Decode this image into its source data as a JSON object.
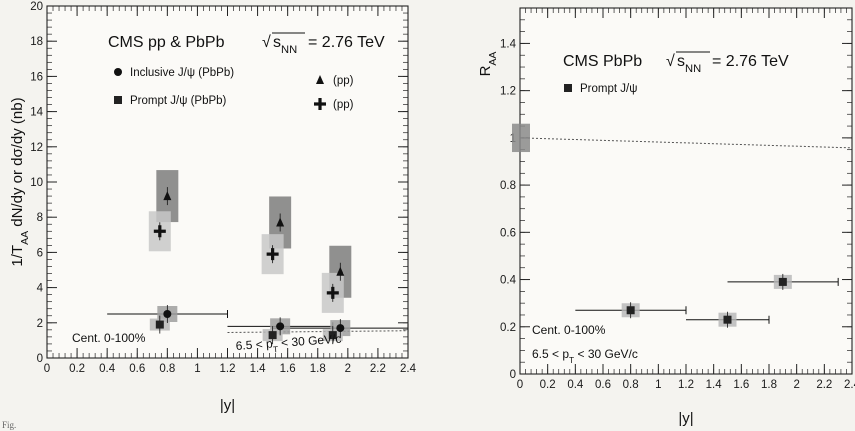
{
  "caption": "Fig.",
  "chart_data": [
    {
      "type": "scatter",
      "title": "CMS pp & PbPb",
      "energy_text": "= 2.76 TeV",
      "ylabel": "1/T_AA dN/dy or dσ/dy (nb)",
      "xlabel": "|y|",
      "xlim": [
        0,
        2.4
      ],
      "ylim": [
        0,
        20
      ],
      "x_ticks": [
        "0",
        "0.2",
        "0.4",
        "0.6",
        "0.8",
        "1",
        "1.2",
        "1.4",
        "1.6",
        "1.8",
        "2",
        "2.2",
        "2.4"
      ],
      "y_ticks": [
        "0",
        "2",
        "4",
        "6",
        "8",
        "10",
        "12",
        "14",
        "16",
        "18",
        "20"
      ],
      "centrality": "Cent. 0-100%",
      "pt_range": "6.5 < p_T < 30 GeV/c",
      "series": [
        {
          "name": "Inclusive J/ψ (PbPb)",
          "marker": "circle",
          "x": [
            0.8,
            1.55,
            1.95
          ],
          "y": [
            2.5,
            1.8,
            1.7
          ],
          "x_err": [
            0.4,
            0.35,
            0.45
          ]
        },
        {
          "name": "(pp)",
          "marker": "triangle",
          "x": [
            0.8,
            1.55,
            1.95
          ],
          "y": [
            9.2,
            7.7,
            4.9
          ]
        },
        {
          "name": "Prompt J/ψ (PbPb)",
          "marker": "square",
          "x": [
            0.75,
            1.5,
            1.9
          ],
          "y": [
            1.9,
            1.3,
            1.3
          ]
        },
        {
          "name": "(pp)",
          "marker": "cross",
          "x": [
            0.75,
            1.5,
            1.9
          ],
          "y": [
            7.2,
            5.9,
            3.7
          ]
        }
      ]
    },
    {
      "type": "scatter",
      "title": "CMS PbPb",
      "energy_text": "= 2.76 TeV",
      "ylabel": "R_AA",
      "xlabel": "|y|",
      "xlim": [
        0,
        2.4
      ],
      "ylim": [
        0,
        1.55
      ],
      "x_ticks": [
        "0",
        "0.2",
        "0.4",
        "0.6",
        "0.8",
        "1",
        "1.2",
        "1.4",
        "1.6",
        "1.8",
        "2",
        "2.2",
        "2.4"
      ],
      "y_ticks": [
        "0",
        "0.2",
        "0.4",
        "0.6",
        "0.8",
        "1",
        "1.2",
        "1.4"
      ],
      "centrality": "Cent. 0-100%",
      "pt_range": "6.5 < p_T < 30 GeV/c",
      "reference_line": 1,
      "series": [
        {
          "name": "Prompt J/ψ",
          "marker": "square",
          "x": [
            0.8,
            1.5,
            1.9
          ],
          "y": [
            0.27,
            0.23,
            0.39
          ],
          "x_err": [
            0.4,
            0.3,
            0.4
          ]
        }
      ]
    }
  ]
}
